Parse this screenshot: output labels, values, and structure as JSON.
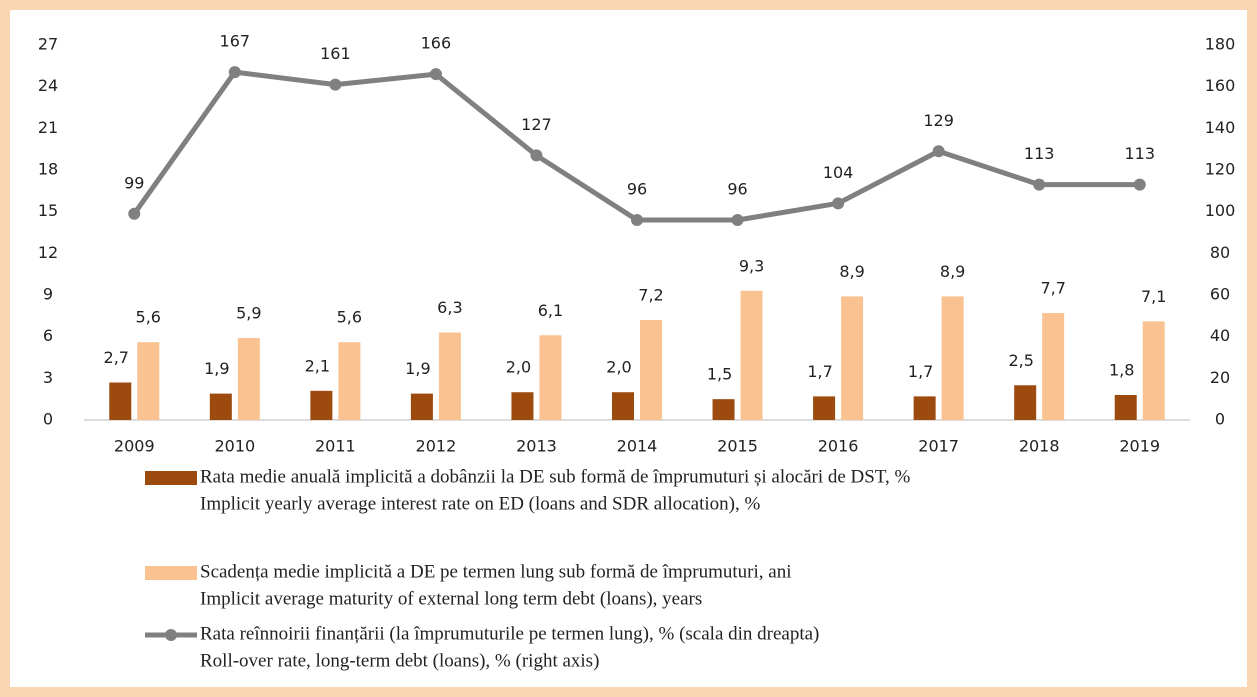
{
  "chart_data": {
    "type": "bar_line",
    "categories": [
      "2009",
      "2010",
      "2011",
      "2012",
      "2013",
      "2014",
      "2015",
      "2016",
      "2017",
      "2018",
      "2019"
    ],
    "series": [
      {
        "name": "Rata medie anuală implicită a dobânzii la DE sub formă de împrumuturi și alocări de DST, %",
        "name_en": "Implicit yearly average interest rate on ED (loans and SDR allocation), %",
        "type": "bar",
        "color": "#9c4a0d",
        "values": [
          2.7,
          1.9,
          2.1,
          1.9,
          2.0,
          2.0,
          1.5,
          1.7,
          1.7,
          2.5,
          1.8
        ],
        "value_labels": [
          "2,7",
          "1,9",
          "2,1",
          "1,9",
          "2,0",
          "2,0",
          "1,5",
          "1,7",
          "1,7",
          "2,5",
          "1,8"
        ]
      },
      {
        "name": "Scadența medie implicită a DE pe termen lung sub formă de împrumuturi, ani",
        "name_en": "Implicit average maturity of external long term debt (loans), years",
        "type": "bar",
        "color": "#f9c290",
        "values": [
          5.6,
          5.9,
          5.6,
          6.3,
          6.1,
          7.2,
          9.3,
          8.9,
          8.9,
          7.7,
          7.1
        ],
        "value_labels": [
          "5,6",
          "5,9",
          "5,6",
          "6,3",
          "6,1",
          "7,2",
          "9,3",
          "8,9",
          "8,9",
          "7,7",
          "7,1"
        ]
      },
      {
        "name": "Rata reînnoirii finanțării (la împrumuturile pe termen lung), % (scala din dreapta)",
        "name_en": "Roll-over rate, long-term debt (loans), % (right axis)",
        "type": "line",
        "axis": "y2",
        "color": "#808080",
        "values": [
          99,
          167,
          161,
          166,
          127,
          96,
          96,
          104,
          129,
          113,
          113
        ]
      }
    ],
    "ylim": [
      0,
      27
    ],
    "yticks": [
      0,
      3,
      6,
      9,
      12,
      15,
      18,
      21,
      24,
      27
    ],
    "y2lim": [
      0,
      180
    ],
    "y2ticks": [
      0,
      20,
      40,
      60,
      80,
      100,
      120,
      140,
      160,
      180
    ]
  }
}
